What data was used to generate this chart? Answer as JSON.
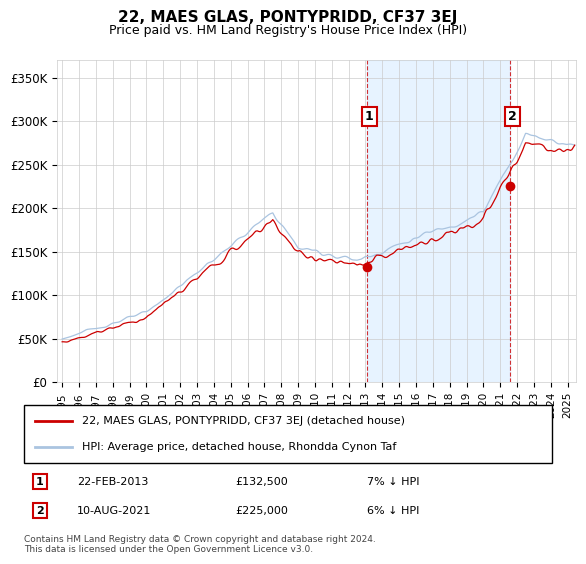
{
  "title": "22, MAES GLAS, PONTYPRIDD, CF37 3EJ",
  "subtitle": "Price paid vs. HM Land Registry's House Price Index (HPI)",
  "ylim": [
    0,
    370000
  ],
  "yticks": [
    0,
    50000,
    100000,
    150000,
    200000,
    250000,
    300000,
    350000
  ],
  "ytick_labels": [
    "£0",
    "£50K",
    "£100K",
    "£150K",
    "£200K",
    "£250K",
    "£300K",
    "£350K"
  ],
  "hpi_color": "#aac4e0",
  "price_color": "#cc0000",
  "shade_color": "#ddeeff",
  "sale1_t": 2013.08,
  "sale1_v": 132500,
  "sale2_t": 2021.58,
  "sale2_v": 225000,
  "sale1_date": "22-FEB-2013",
  "sale1_price": "£132,500",
  "sale1_hpi": "7% ↓ HPI",
  "sale2_date": "10-AUG-2021",
  "sale2_price": "£225,000",
  "sale2_hpi": "6% ↓ HPI",
  "legend_label1": "22, MAES GLAS, PONTYPRIDD, CF37 3EJ (detached house)",
  "legend_label2": "HPI: Average price, detached house, Rhondda Cynon Taf",
  "footer": "Contains HM Land Registry data © Crown copyright and database right 2024.\nThis data is licensed under the Open Government Licence v3.0.",
  "xlim_left": 1994.7,
  "xlim_right": 2025.5,
  "xstart": 1995,
  "xend": 2025
}
